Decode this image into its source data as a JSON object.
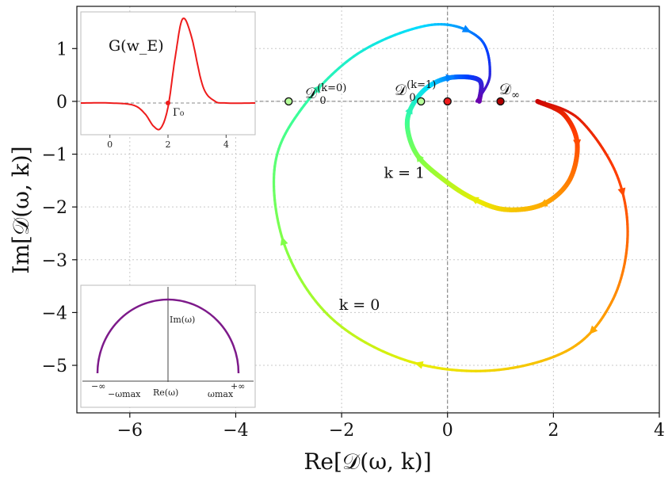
{
  "chart_data": {
    "type": "line",
    "xlabel": "Re[𝒟(ω, k)]",
    "ylabel": "Im[𝒟(ω, k)]",
    "xlim": [
      -7,
      4
    ],
    "ylim": [
      -5.9,
      1.8
    ],
    "xticks": [
      -6,
      -4,
      -2,
      0,
      2,
      4
    ],
    "yticks": [
      1,
      0,
      -1,
      -2,
      -3,
      -4,
      -5
    ],
    "xtick_labels": [
      "−6",
      "−4",
      "−2",
      "0",
      "2",
      "4"
    ],
    "ytick_labels": [
      "1",
      "0",
      "−1",
      "−2",
      "−3",
      "−4",
      "−5"
    ],
    "grid": true,
    "series": [
      {
        "name": "k = 0",
        "x": [
          1.75,
          2.5,
          3.2,
          3.4,
          3.1,
          2.3,
          0.8,
          -0.8,
          -2.2,
          -3.05,
          -3.27,
          -2.8,
          -1.7,
          -0.3,
          0.6,
          0.8,
          0.55
        ],
        "y": [
          0.0,
          -0.35,
          -1.4,
          -2.6,
          -3.8,
          -4.7,
          -5.1,
          -4.9,
          -4.1,
          -2.8,
          -1.3,
          -0.2,
          0.9,
          1.45,
          1.2,
          0.5,
          0.0
        ]
      },
      {
        "name": "k = 1",
        "x": [
          1.7,
          2.2,
          2.45,
          2.3,
          1.8,
          1.1,
          0.5,
          -0.05,
          -0.55,
          -0.75,
          -0.7,
          -0.4,
          0.05,
          0.6,
          0.6
        ],
        "y": [
          0.0,
          -0.25,
          -0.8,
          -1.5,
          -1.95,
          -2.05,
          -1.85,
          -1.5,
          -1.05,
          -0.55,
          -0.15,
          0.25,
          0.45,
          0.4,
          0.0
        ]
      }
    ],
    "markers": [
      {
        "label": "𝒟₀(k=0)",
        "x": -3.0,
        "y": 0
      },
      {
        "label": "𝒟₀(k=1)",
        "x": -0.5,
        "y": 0
      },
      {
        "label": "",
        "x": 0,
        "y": 0
      },
      {
        "label": "𝒟∞",
        "x": 1.0,
        "y": 0
      }
    ],
    "annotations": [
      {
        "text": "k = 1",
        "x": -1.2,
        "y": -1.45
      },
      {
        "text": "k = 0",
        "x": -2.05,
        "y": -3.95
      }
    ],
    "insets": [
      {
        "label": "G(w_E)",
        "type": "line",
        "xticks": [
          0,
          2,
          4
        ],
        "xtick_labels": [
          "0",
          "2",
          "4"
        ],
        "marker_label": "Γ₀",
        "marker_x": 2.0,
        "x": [
          -1,
          0,
          0.8,
          1.2,
          1.5,
          1.75,
          2.0,
          2.25,
          2.5,
          2.8,
          3.2,
          3.6,
          4,
          5
        ],
        "y": [
          0,
          0,
          -0.05,
          -0.25,
          -0.55,
          -0.6,
          -0.1,
          1.1,
          2.0,
          1.6,
          0.4,
          0.05,
          0,
          0
        ]
      },
      {
        "type": "contour",
        "vertical_label": "Im(ω)",
        "horizontal_label": "Re(ω)",
        "tick_labels": [
          "−∞",
          "−ωmax",
          "ωmax",
          "+∞"
        ]
      }
    ]
  }
}
